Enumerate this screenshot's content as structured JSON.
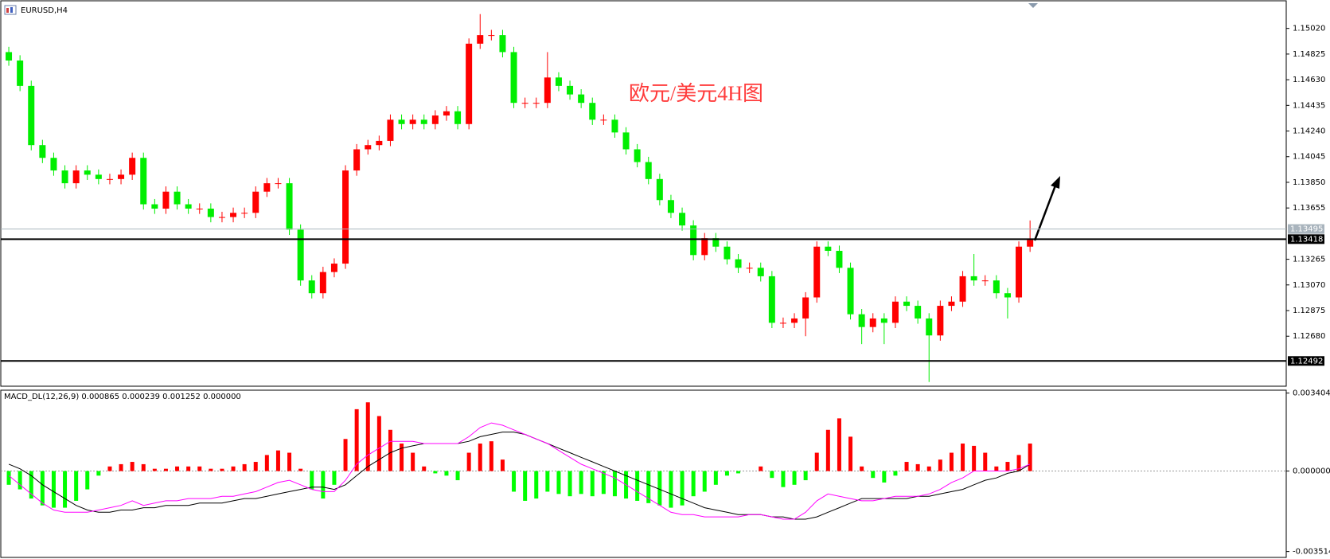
{
  "chart_data": [
    {
      "type": "candlestick",
      "title": "EURUSD,H4",
      "annotation": "欧元/美元4H图",
      "up_color": "#ff0000",
      "down_color": "#00ee00",
      "open": [
        1.1484,
        1.14776,
        1.14583,
        1.14133,
        1.14036,
        1.1394,
        1.13843,
        1.1394,
        1.13908,
        1.13875,
        1.13875,
        1.13908,
        1.14036,
        1.13683,
        1.1365,
        1.13779,
        1.13683,
        1.1365,
        1.1365,
        1.13586,
        1.13586,
        1.13618,
        1.13618,
        1.13779,
        1.13843,
        1.13843,
        1.1349,
        1.13104,
        1.13007,
        1.13168,
        1.13232,
        1.1394,
        1.14101,
        1.14133,
        1.14165,
        1.14326,
        1.14293,
        1.14326,
        1.14293,
        1.14358,
        1.1439,
        1.14293,
        1.14904,
        1.14969,
        1.14969,
        1.1484,
        1.14454,
        1.14454,
        1.14454,
        1.14647,
        1.14583,
        1.14518,
        1.14454,
        1.14326,
        1.14326,
        1.14229,
        1.14101,
        1.14004,
        1.13875,
        1.13715,
        1.13618,
        1.13522,
        1.13297,
        1.13425,
        1.13361,
        1.13265,
        1.132,
        1.132,
        1.13136,
        1.12782,
        1.12782,
        1.12815,
        1.12975,
        1.13361,
        1.13329,
        1.132,
        1.12847,
        1.1275,
        1.12815,
        1.12782,
        1.12943,
        1.12911,
        1.12815,
        1.12686,
        1.12911,
        1.12943,
        1.13136,
        1.13104,
        1.13104,
        1.13007,
        1.12975,
        1.13361
      ],
      "high": [
        1.1488,
        1.14816,
        1.14623,
        1.14173,
        1.14076,
        1.1398,
        1.1398,
        1.1398,
        1.13948,
        1.13915,
        1.13948,
        1.14076,
        1.14076,
        1.13723,
        1.13819,
        1.13819,
        1.13723,
        1.1369,
        1.1369,
        1.13626,
        1.13658,
        1.13658,
        1.13819,
        1.13883,
        1.13883,
        1.13883,
        1.1353,
        1.13144,
        1.13208,
        1.13272,
        1.1398,
        1.14141,
        1.14173,
        1.14205,
        1.14366,
        1.14366,
        1.14366,
        1.14366,
        1.14398,
        1.1443,
        1.1443,
        1.14944,
        1.15129,
        1.15009,
        1.15009,
        1.1488,
        1.14494,
        1.14494,
        1.1484,
        1.14687,
        1.14623,
        1.14558,
        1.14494,
        1.14366,
        1.14366,
        1.14269,
        1.14141,
        1.14044,
        1.13915,
        1.13755,
        1.13658,
        1.13562,
        1.13465,
        1.13465,
        1.13401,
        1.13305,
        1.1324,
        1.1324,
        1.13176,
        1.12822,
        1.12855,
        1.13015,
        1.13401,
        1.13401,
        1.13369,
        1.1324,
        1.12887,
        1.12855,
        1.12855,
        1.12983,
        1.12983,
        1.12951,
        1.12855,
        1.12951,
        1.12983,
        1.13176,
        1.13305,
        1.13144,
        1.13144,
        1.13047,
        1.13401,
        1.1356
      ],
      "low": [
        1.14736,
        1.14543,
        1.14093,
        1.13996,
        1.139,
        1.13803,
        1.13803,
        1.13868,
        1.13835,
        1.13835,
        1.13835,
        1.13868,
        1.13643,
        1.1361,
        1.1361,
        1.13643,
        1.1361,
        1.1361,
        1.13546,
        1.13546,
        1.13546,
        1.13578,
        1.13578,
        1.13739,
        1.13803,
        1.1345,
        1.13064,
        1.12967,
        1.12967,
        1.13128,
        1.13192,
        1.139,
        1.14061,
        1.14093,
        1.14125,
        1.14253,
        1.14253,
        1.14253,
        1.14253,
        1.14318,
        1.14253,
        1.14253,
        1.14864,
        1.14929,
        1.148,
        1.14414,
        1.14414,
        1.14414,
        1.14414,
        1.14543,
        1.14478,
        1.14414,
        1.14286,
        1.14286,
        1.14189,
        1.14061,
        1.13964,
        1.13835,
        1.13675,
        1.13578,
        1.13482,
        1.13257,
        1.13257,
        1.13321,
        1.13225,
        1.1316,
        1.1316,
        1.13096,
        1.12742,
        1.12742,
        1.12742,
        1.1268,
        1.12935,
        1.13289,
        1.1316,
        1.12807,
        1.1262,
        1.1271,
        1.1262,
        1.12742,
        1.12871,
        1.12775,
        1.12332,
        1.12646,
        1.12871,
        1.12903,
        1.13064,
        1.13064,
        1.12967,
        1.12815,
        1.12935,
        1.13321
      ],
      "close": [
        1.14776,
        1.14583,
        1.14133,
        1.14036,
        1.1394,
        1.13843,
        1.1394,
        1.13908,
        1.13875,
        1.13875,
        1.13908,
        1.14036,
        1.13683,
        1.1365,
        1.13779,
        1.13683,
        1.1365,
        1.1365,
        1.13586,
        1.13586,
        1.13618,
        1.13618,
        1.13779,
        1.13843,
        1.13843,
        1.1349,
        1.13104,
        1.13007,
        1.13168,
        1.13232,
        1.1394,
        1.14101,
        1.14133,
        1.14165,
        1.14326,
        1.14293,
        1.14326,
        1.14293,
        1.14358,
        1.1439,
        1.14293,
        1.14904,
        1.14969,
        1.14969,
        1.1484,
        1.14454,
        1.14454,
        1.14454,
        1.14647,
        1.14583,
        1.14518,
        1.14454,
        1.14326,
        1.14326,
        1.14229,
        1.14101,
        1.14004,
        1.13875,
        1.13715,
        1.13618,
        1.13522,
        1.13297,
        1.13425,
        1.13361,
        1.13265,
        1.132,
        1.132,
        1.13136,
        1.12782,
        1.12782,
        1.12815,
        1.12975,
        1.13361,
        1.13329,
        1.132,
        1.12847,
        1.1275,
        1.12815,
        1.12782,
        1.12943,
        1.12911,
        1.12815,
        1.12686,
        1.12911,
        1.12943,
        1.13136,
        1.13104,
        1.13104,
        1.13007,
        1.12975,
        1.13361,
        1.13412
      ],
      "ylim": [
        1.123,
        1.1523
      ],
      "yticks": [
        {
          "value": 1.1502,
          "label": "1.15020"
        },
        1.14825,
        {
          "value": 1.1463,
          "label": "1.14630"
        },
        1.14435,
        {
          "value": 1.1424,
          "label": "1.14240"
        },
        1.14045,
        {
          "value": 1.1385,
          "label": "1.13850"
        },
        1.13655,
        1.13265,
        {
          "value": 1.1307,
          "label": "1.13070"
        },
        1.12875,
        {
          "value": 1.1268,
          "label": "1.12680"
        }
      ],
      "hlines": [
        {
          "value": 1.13495,
          "color": "#a9b4bd"
        },
        {
          "value": 1.13418,
          "color": "#000000"
        },
        {
          "value": 1.12492,
          "color": "#000000"
        }
      ]
    },
    {
      "type": "macd",
      "title": "MACD_DL(12,26,9) 0.000865 0.000239 0.001252 0.000000",
      "up_color": "#ff0000",
      "down_color": "#00ff00",
      "values": [
        -0.0006,
        -0.0008,
        -0.0012,
        -0.0015,
        -0.0016,
        -0.0016,
        -0.0013,
        -0.0008,
        -0.0002,
        0.0002,
        0.0003,
        0.0004,
        0.0003,
        0.0001,
        0.0001,
        0.0002,
        0.0002,
        0.0002,
        0.0001,
        0.0001,
        0.0002,
        0.0003,
        0.0004,
        0.0007,
        0.0009,
        0.0008,
        0.0001,
        -0.0008,
        -0.0012,
        -0.0006,
        0.0014,
        0.0027,
        0.003,
        0.0024,
        0.0018,
        0.0012,
        0.0008,
        0.0002,
        -0.0001,
        -0.0002,
        -0.0004,
        0.0008,
        0.0012,
        0.0013,
        0.0005,
        -0.0009,
        -0.0013,
        -0.0012,
        -0.0009,
        -0.001,
        -0.0011,
        -0.001,
        -0.0011,
        -0.001,
        -0.0011,
        -0.0012,
        -0.0013,
        -0.0014,
        -0.0015,
        -0.0016,
        -0.0015,
        -0.0011,
        -0.0009,
        -0.0006,
        -0.0002,
        -0.0001,
        0,
        0.0002,
        -0.0003,
        -0.0007,
        -0.0006,
        -0.0004,
        0.0008,
        0.0018,
        0.0023,
        0.0015,
        0.0002,
        -0.0003,
        -0.0005,
        -0.0002,
        0.0004,
        0.0003,
        0.0002,
        0.0005,
        0.0008,
        0.0012,
        0.0011,
        0.0008,
        0.0002,
        0.0004,
        0.0007,
        0.0012
      ],
      "series": [
        {
          "color": "#000000",
          "values": [
            0.0003,
            0.0001,
            -0.0002,
            -0.0006,
            -0.0009,
            -0.0012,
            -0.0015,
            -0.0017,
            -0.0018,
            -0.0018,
            -0.0017,
            -0.0017,
            -0.0016,
            -0.0016,
            -0.0015,
            -0.0015,
            -0.0015,
            -0.0014,
            -0.0014,
            -0.0014,
            -0.0013,
            -0.0012,
            -0.0012,
            -0.0011,
            -0.001,
            -0.0009,
            -0.0008,
            -0.0007,
            -0.0007,
            -0.0008,
            -0.0006,
            -0.0002,
            0.0002,
            0.0005,
            0.0008,
            0.001,
            0.0011,
            0.0012,
            0.0012,
            0.0012,
            0.0012,
            0.0013,
            0.0015,
            0.0016,
            0.0017,
            0.0017,
            0.0016,
            0.0014,
            0.0012,
            0.001,
            0.0008,
            0.0006,
            0.0004,
            0.0002,
            0,
            -0.0002,
            -0.0004,
            -0.0006,
            -0.0008,
            -0.001,
            -0.0012,
            -0.0014,
            -0.0016,
            -0.0017,
            -0.0018,
            -0.0019,
            -0.0019,
            -0.0019,
            -0.002,
            -0.002,
            -0.0021,
            -0.0021,
            -0.002,
            -0.0018,
            -0.0016,
            -0.0014,
            -0.0012,
            -0.0012,
            -0.0012,
            -0.0012,
            -0.0012,
            -0.0011,
            -0.0011,
            -0.001,
            -0.0009,
            -0.0008,
            -0.0006,
            -0.0004,
            -0.0003,
            -0.0001,
            0,
            0.0003
          ]
        },
        {
          "color": "#ff00ff",
          "values": [
            -0.0002,
            -0.0006,
            -0.001,
            -0.0014,
            -0.0017,
            -0.0018,
            -0.0018,
            -0.0018,
            -0.0017,
            -0.0016,
            -0.0015,
            -0.0013,
            -0.0015,
            -0.0014,
            -0.0013,
            -0.0013,
            -0.0012,
            -0.0012,
            -0.0012,
            -0.0011,
            -0.0011,
            -0.001,
            -0.0009,
            -0.0007,
            -0.0005,
            -0.0004,
            -0.0006,
            -0.0008,
            -0.0009,
            -0.0009,
            -0.0004,
            0.0003,
            0.0007,
            0.001,
            0.0013,
            0.0013,
            0.0013,
            0.0012,
            0.0012,
            0.0012,
            0.0012,
            0.0015,
            0.0019,
            0.0021,
            0.002,
            0.0018,
            0.0016,
            0.0014,
            0.0012,
            0.0009,
            0.0006,
            0.0003,
            0.0001,
            -0.0001,
            -0.0003,
            -0.0006,
            -0.0009,
            -0.0012,
            -0.0015,
            -0.0018,
            -0.0019,
            -0.0019,
            -0.002,
            -0.002,
            -0.002,
            -0.002,
            -0.0019,
            -0.0019,
            -0.002,
            -0.0021,
            -0.0021,
            -0.0018,
            -0.0013,
            -0.001,
            -0.0011,
            -0.0012,
            -0.0013,
            -0.0013,
            -0.0012,
            -0.0011,
            -0.0011,
            -0.0011,
            -0.001,
            -0.0008,
            -0.0005,
            -0.0003,
            0,
            0,
            0,
            0,
            0.0001,
            0.0003
          ]
        }
      ],
      "ylim": [
        -0.00377,
        0.00353
      ],
      "yticks": [
        0.003404,
        {
          "value": 0,
          "label": "0.000000"
        },
        -0.003514
      ],
      "zero_line": true
    }
  ]
}
